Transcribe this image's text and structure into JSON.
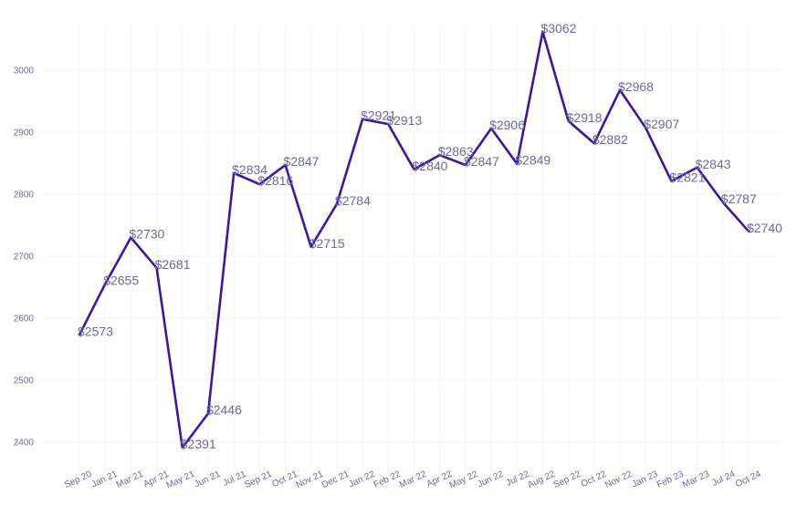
{
  "chart_data": {
    "type": "line",
    "title": "",
    "xlabel": "",
    "ylabel": "",
    "categories": [
      "Sep 20",
      "Jan 21",
      "Mar 21",
      "Apr 21",
      "May 21",
      "Jun 21",
      "Jul 21",
      "Sep 21",
      "Oct 21",
      "Nov 21",
      "Dec 21",
      "Jan 22",
      "Feb 22",
      "Mar 22",
      "Apr 22",
      "May 22",
      "Jun 22",
      "Jul 22",
      "Aug 22",
      "Sep 22",
      "Oct 22",
      "Nov 22",
      "Jan 23",
      "Feb 23",
      "Mar 23",
      "Jul 24",
      "Oct 24"
    ],
    "values": [
      2573,
      2655,
      2730,
      2681,
      2391,
      2446,
      2834,
      2816,
      2847,
      2715,
      2784,
      2921,
      2913,
      2840,
      2863,
      2847,
      2906,
      2849,
      3062,
      2918,
      2882,
      2968,
      2907,
      2821,
      2843,
      2787,
      2740
    ],
    "data_labels": [
      "$2573",
      "$2655",
      "$2730",
      "$2681",
      "$2391",
      "$2446",
      "$2834",
      "$2816",
      "$2847",
      "$2715",
      "$2784",
      "$2921",
      "$2913",
      "$2840",
      "$2863",
      "$2847",
      "$2906",
      "$2849",
      "$3062",
      "$2918",
      "$2882",
      "$2968",
      "$2907",
      "$2821",
      "$2843",
      "$2787",
      "$2740"
    ],
    "yticks": [
      2400,
      2500,
      2600,
      2700,
      2800,
      2900,
      3000
    ],
    "ylim": [
      2360,
      3075
    ],
    "grid": true,
    "legend": "none",
    "colors": {
      "line": "#3f16a0",
      "text": "#6b6b9a",
      "grid": "#f5f5f5"
    }
  }
}
